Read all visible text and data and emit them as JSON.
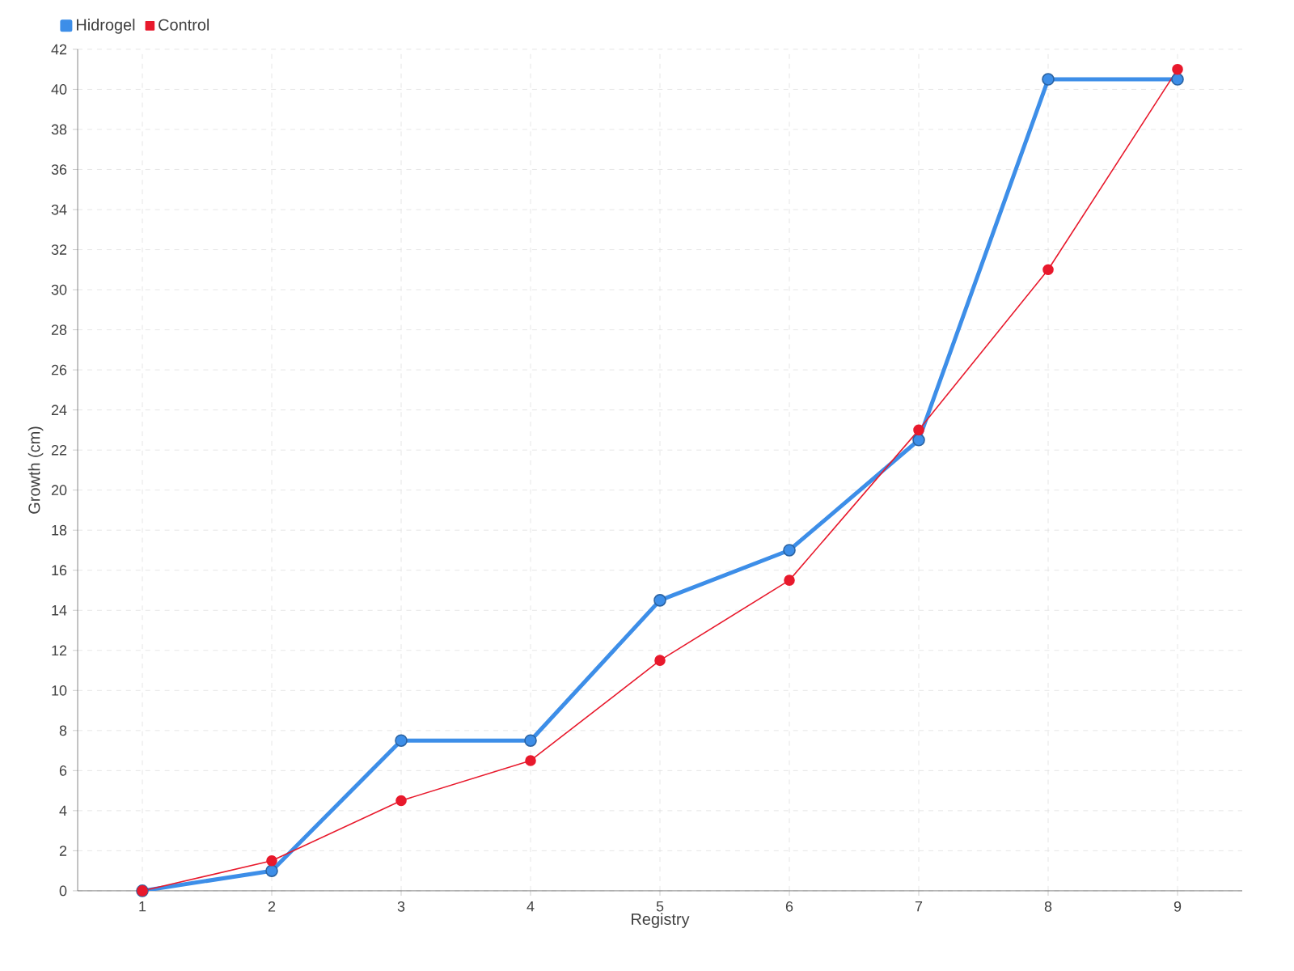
{
  "chart_data": {
    "type": "line",
    "xlabel": "Registry",
    "ylabel": "Growth (cm)",
    "categories": [
      "1",
      "2",
      "3",
      "4",
      "5",
      "6",
      "7",
      "8",
      "9"
    ],
    "series": [
      {
        "name": "Hidrogel",
        "color": "#3d8ee8",
        "values": [
          0,
          1,
          7.5,
          7.5,
          14.5,
          17,
          22.5,
          40.5,
          40.5
        ]
      },
      {
        "name": "Control",
        "color": "#e8192c",
        "values": [
          0,
          1.5,
          4.5,
          6.5,
          11.5,
          15.5,
          23,
          31,
          41
        ]
      }
    ],
    "ylim": [
      0,
      42
    ],
    "yticks": [
      0,
      2,
      4,
      6,
      8,
      10,
      12,
      14,
      16,
      18,
      20,
      22,
      24,
      26,
      28,
      30,
      32,
      34,
      36,
      38,
      40,
      42
    ],
    "grid": true,
    "legend": "top left",
    "marker": "circle",
    "line_style": "solid"
  }
}
